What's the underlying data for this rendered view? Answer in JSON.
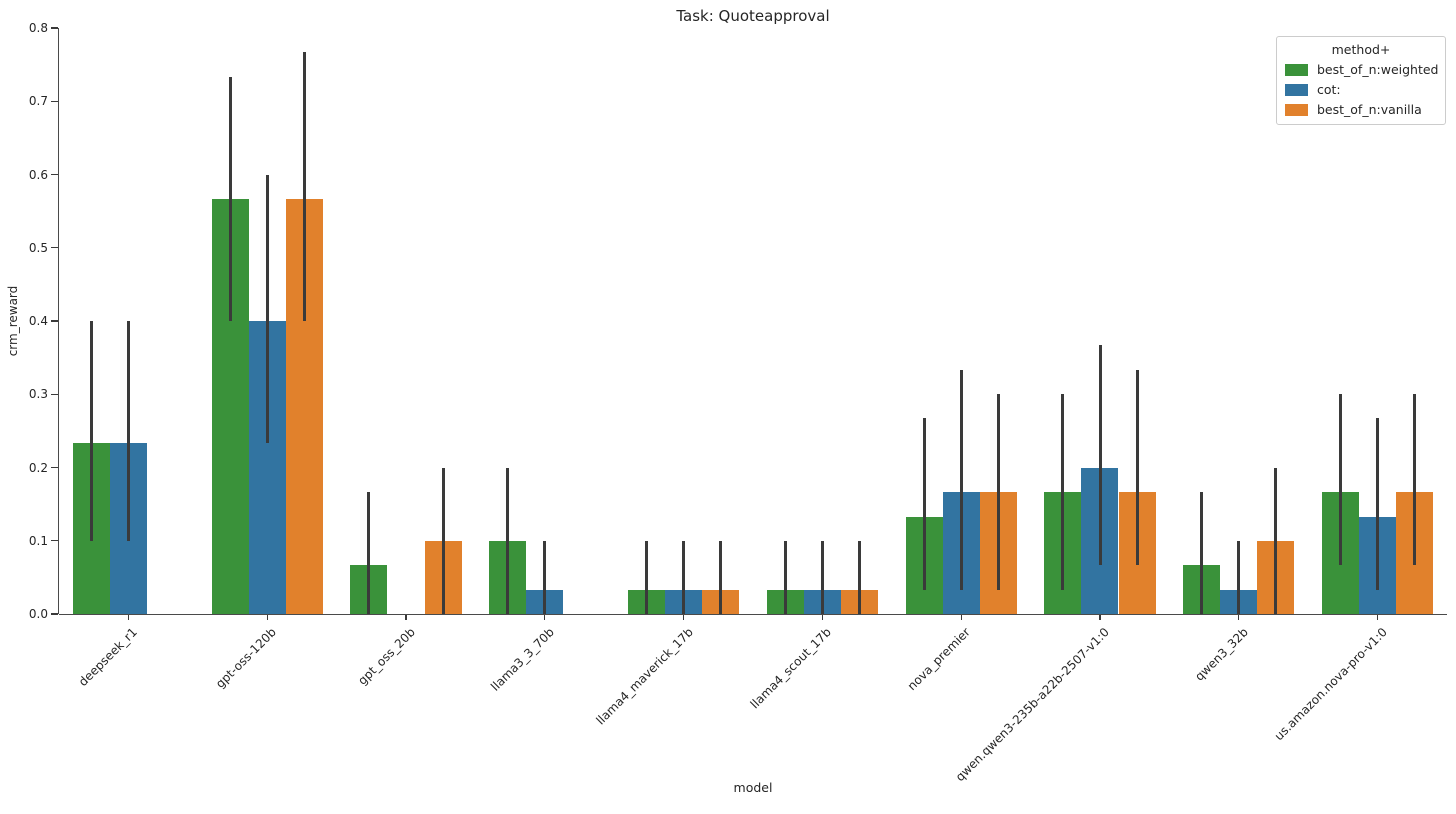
{
  "title": "Task: Quoteapproval",
  "xlabel": "model",
  "ylabel": "crm_reward",
  "legend": {
    "title": "method+",
    "entries": [
      {
        "label": "best_of_n:weighted",
        "color": "#3A923A"
      },
      {
        "label": "cot:",
        "color": "#3274A1"
      },
      {
        "label": "best_of_n:vanilla",
        "color": "#E1812C"
      }
    ]
  },
  "colors": {
    "green": "#3A923A",
    "blue": "#3274A1",
    "orange": "#E1812C",
    "error_bar": "#3a3a3a",
    "spine": "#4a4a4a",
    "text": "#262626"
  },
  "chart_data": {
    "type": "bar",
    "title": "Task: Quoteapproval",
    "xlabel": "model",
    "ylabel": "crm_reward",
    "ylim": [
      0.0,
      0.8
    ],
    "yticks": [
      "0.0",
      "0.1",
      "0.2",
      "0.3",
      "0.4",
      "0.5",
      "0.6",
      "0.7",
      "0.8"
    ],
    "grid": false,
    "legend_position": "upper right",
    "legend_title": "method+",
    "categories": [
      "deepseek_r1",
      "gpt-oss-120b",
      "gpt_oss_20b",
      "llama3_3_70b",
      "llama4_maverick_17b",
      "llama4_scout_17b",
      "nova_premier",
      "qwen.qwen3-235b-a22b-2507-v1:0",
      "qwen3_32b",
      "us.amazon.nova-pro-v1:0"
    ],
    "series": [
      {
        "name": "best_of_n:weighted",
        "color": "#3A923A",
        "values": [
          0.233,
          0.567,
          0.067,
          0.1,
          0.033,
          0.033,
          0.133,
          0.167,
          0.067,
          0.167
        ],
        "error_low": [
          0.1,
          0.4,
          0.0,
          0.0,
          0.0,
          0.0,
          0.033,
          0.033,
          0.0,
          0.067
        ],
        "error_high": [
          0.4,
          0.733,
          0.167,
          0.2,
          0.1,
          0.1,
          0.267,
          0.3,
          0.167,
          0.3
        ]
      },
      {
        "name": "cot:",
        "color": "#3274A1",
        "values": [
          0.233,
          0.4,
          null,
          0.033,
          0.033,
          0.033,
          0.167,
          0.2,
          0.033,
          0.133
        ],
        "error_low": [
          0.1,
          0.233,
          null,
          0.0,
          0.0,
          0.0,
          0.033,
          0.067,
          0.0,
          0.033
        ],
        "error_high": [
          0.4,
          0.6,
          null,
          0.1,
          0.1,
          0.1,
          0.333,
          0.367,
          0.1,
          0.267
        ]
      },
      {
        "name": "best_of_n:vanilla",
        "color": "#E1812C",
        "values": [
          null,
          0.567,
          0.1,
          null,
          0.033,
          0.033,
          0.167,
          0.167,
          0.1,
          0.167
        ],
        "error_low": [
          null,
          0.4,
          0.0,
          null,
          0.0,
          0.0,
          0.033,
          0.067,
          0.0,
          0.067
        ],
        "error_high": [
          null,
          0.767,
          0.2,
          null,
          0.1,
          0.1,
          0.3,
          0.333,
          0.2,
          0.3
        ]
      }
    ]
  }
}
